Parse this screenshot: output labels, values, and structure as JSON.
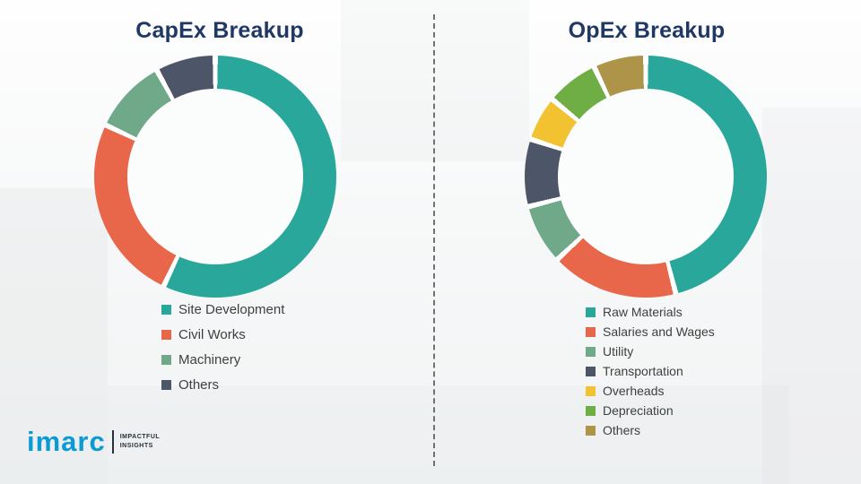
{
  "titles": {
    "left": "CapEx Breakup",
    "right": "OpEx Breakup"
  },
  "chart_data": [
    {
      "type": "pie",
      "donut": true,
      "title": "CapEx Breakup",
      "labels": [
        "Site Development",
        "Civil Works",
        "Machinery",
        "Others"
      ],
      "values": [
        57,
        25,
        10,
        8
      ],
      "colors": [
        "#2aa79b",
        "#e8674a",
        "#70a989",
        "#4d5668"
      ],
      "legend_position": "bottom-left"
    },
    {
      "type": "pie",
      "donut": true,
      "title": "OpEx Breakup",
      "labels": [
        "Raw Materials",
        "Salaries and Wages",
        "Utility",
        "Transportation",
        "Overheads",
        "Depreciation",
        "Others"
      ],
      "values": [
        46,
        17,
        8,
        9,
        6,
        7,
        7
      ],
      "colors": [
        "#2aa79b",
        "#e8674a",
        "#70a989",
        "#4d5668",
        "#f2c231",
        "#6fae44",
        "#ae9448"
      ],
      "legend_position": "bottom-left"
    }
  ],
  "logo": {
    "brand": "imarc",
    "tagline_line1": "IMPACTFUL",
    "tagline_line2": "INSIGHTS"
  },
  "style": {
    "title_color": "#1f3864",
    "legend_text_color": "#3f3f3f",
    "brand_blue": "#0a9bd7"
  }
}
